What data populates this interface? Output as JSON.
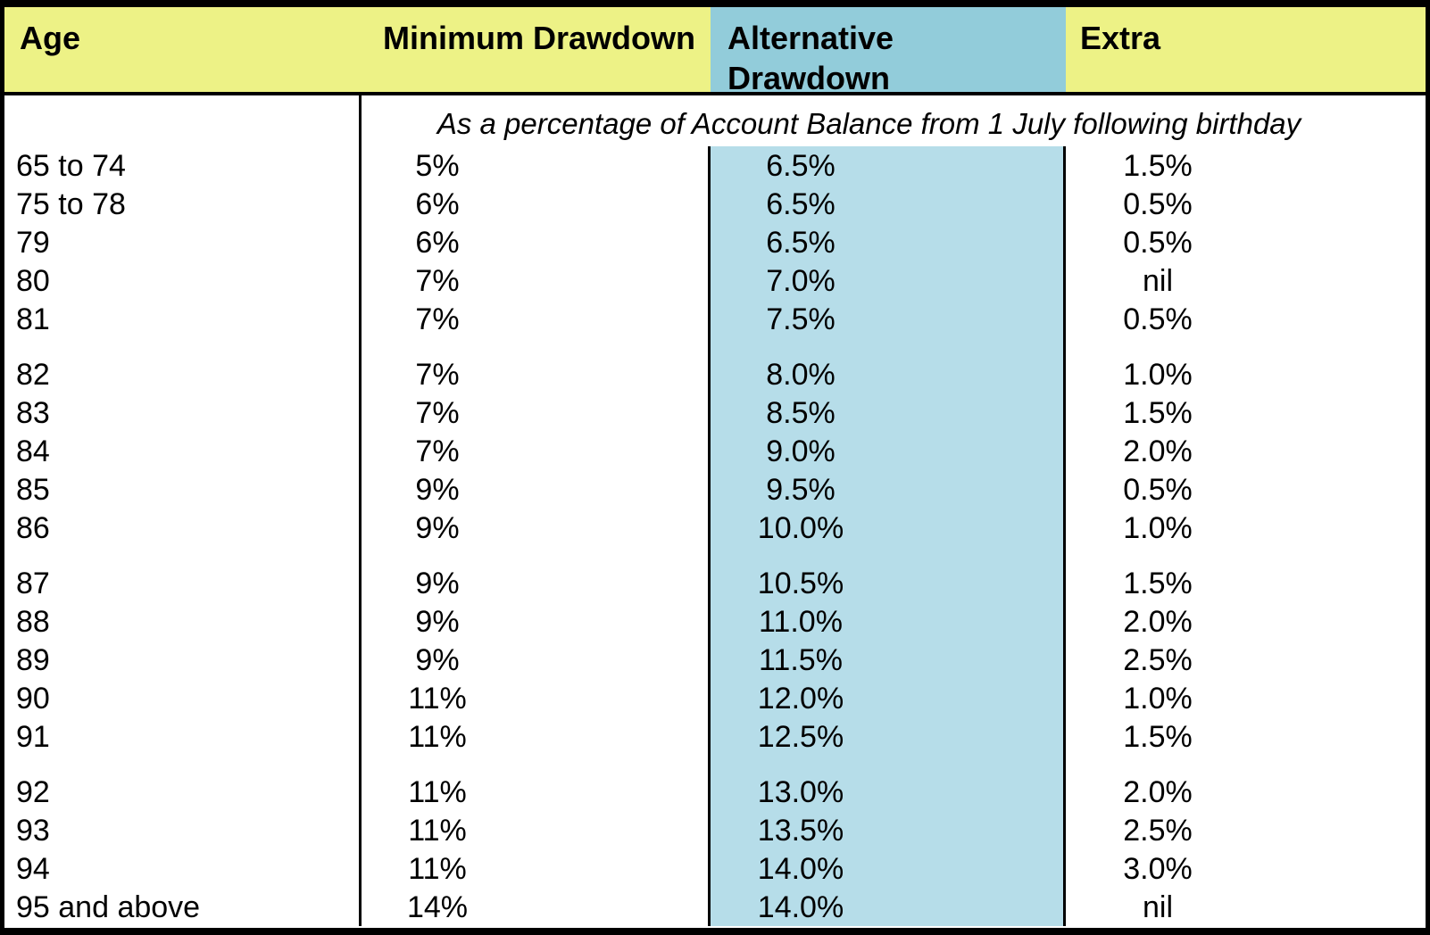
{
  "colors": {
    "header_yellow": "#edf286",
    "header_blue": "#92ccda",
    "column_blue": "#b6dde9",
    "border_black": "#000000",
    "background_white": "#ffffff",
    "text_black": "#000000"
  },
  "table": {
    "headers": {
      "age": "Age",
      "minimum_drawdown": "Minimum Drawdown",
      "alternative_drawdown": "Alternative Drawdown",
      "extra": "Extra"
    },
    "subheader": "As a percentage of Account Balance from 1 July following birthday",
    "row_groups": [
      [
        {
          "age": "65 to 74",
          "minimum_drawdown": "5%",
          "alternative_drawdown": "6.5%",
          "extra": "1.5%"
        },
        {
          "age": "75 to 78",
          "minimum_drawdown": "6%",
          "alternative_drawdown": "6.5%",
          "extra": "0.5%"
        },
        {
          "age": "79",
          "minimum_drawdown": "6%",
          "alternative_drawdown": "6.5%",
          "extra": "0.5%"
        },
        {
          "age": "80",
          "minimum_drawdown": "7%",
          "alternative_drawdown": "7.0%",
          "extra": "nil"
        },
        {
          "age": "81",
          "minimum_drawdown": "7%",
          "alternative_drawdown": "7.5%",
          "extra": "0.5%"
        }
      ],
      [
        {
          "age": "82",
          "minimum_drawdown": "7%",
          "alternative_drawdown": "8.0%",
          "extra": "1.0%"
        },
        {
          "age": "83",
          "minimum_drawdown": "7%",
          "alternative_drawdown": "8.5%",
          "extra": "1.5%"
        },
        {
          "age": "84",
          "minimum_drawdown": "7%",
          "alternative_drawdown": "9.0%",
          "extra": "2.0%"
        },
        {
          "age": "85",
          "minimum_drawdown": "9%",
          "alternative_drawdown": "9.5%",
          "extra": "0.5%"
        },
        {
          "age": "86",
          "minimum_drawdown": "9%",
          "alternative_drawdown": "10.0%",
          "extra": "1.0%"
        }
      ],
      [
        {
          "age": "87",
          "minimum_drawdown": "9%",
          "alternative_drawdown": "10.5%",
          "extra": "1.5%"
        },
        {
          "age": "88",
          "minimum_drawdown": "9%",
          "alternative_drawdown": "11.0%",
          "extra": "2.0%"
        },
        {
          "age": "89",
          "minimum_drawdown": "9%",
          "alternative_drawdown": "11.5%",
          "extra": "2.5%"
        },
        {
          "age": "90",
          "minimum_drawdown": "11%",
          "alternative_drawdown": "12.0%",
          "extra": "1.0%"
        },
        {
          "age": "91",
          "minimum_drawdown": "11%",
          "alternative_drawdown": "12.5%",
          "extra": "1.5%"
        }
      ],
      [
        {
          "age": "92",
          "minimum_drawdown": "11%",
          "alternative_drawdown": "13.0%",
          "extra": "2.0%"
        },
        {
          "age": "93",
          "minimum_drawdown": "11%",
          "alternative_drawdown": "13.5%",
          "extra": "2.5%"
        },
        {
          "age": "94",
          "minimum_drawdown": "11%",
          "alternative_drawdown": "14.0%",
          "extra": "3.0%"
        },
        {
          "age": "95 and above",
          "minimum_drawdown": "14%",
          "alternative_drawdown": "14.0%",
          "extra": "nil"
        }
      ]
    ]
  }
}
